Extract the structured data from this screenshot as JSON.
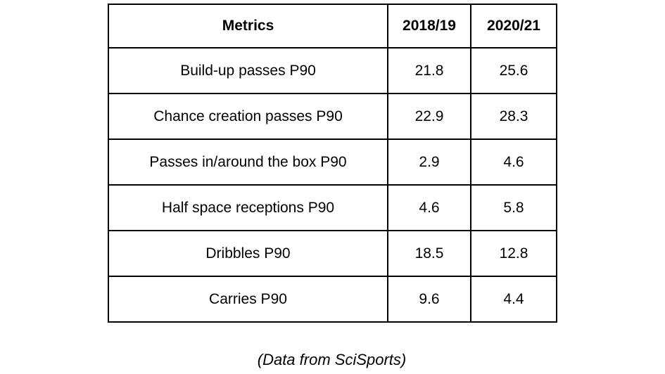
{
  "table": {
    "headers": [
      "Metrics",
      "2018/19",
      "2020/21"
    ],
    "rows": [
      [
        "Build-up passes P90",
        "21.8",
        "25.6"
      ],
      [
        "Chance creation passes P90",
        "22.9",
        "28.3"
      ],
      [
        "Passes in/around the box P90",
        "2.9",
        "4.6"
      ],
      [
        "Half space receptions P90",
        "4.6",
        "5.8"
      ],
      [
        "Dribbles P90",
        "18.5",
        "12.8"
      ],
      [
        "Carries P90",
        "9.6",
        "4.4"
      ]
    ]
  },
  "caption": {
    "text": "(Data from SciSports)"
  },
  "colors": {
    "border": "#000000",
    "text": "#000000",
    "background": "#ffffff"
  },
  "chart_data": {
    "type": "table",
    "title": "",
    "caption": "(Data from SciSports)",
    "categories": [
      "Build-up passes P90",
      "Chance creation passes P90",
      "Passes in/around the box P90",
      "Half space receptions P90",
      "Dribbles P90",
      "Carries P90"
    ],
    "series": [
      {
        "name": "2018/19",
        "values": [
          21.8,
          22.9,
          2.9,
          4.6,
          18.5,
          9.6
        ]
      },
      {
        "name": "2020/21",
        "values": [
          25.6,
          28.3,
          4.6,
          5.8,
          12.8,
          4.4
        ]
      }
    ],
    "legend_position": "column-headers",
    "grid": true
  }
}
